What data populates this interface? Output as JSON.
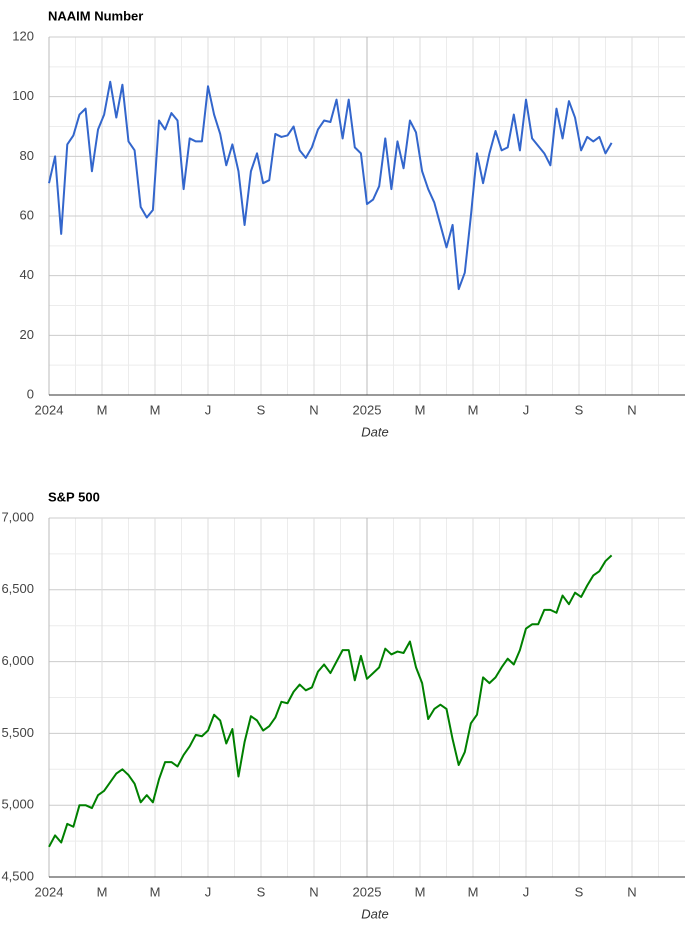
{
  "chart_data": [
    {
      "type": "line",
      "title": "NAAIM Number",
      "x_label": "Date",
      "x": [
        0,
        0.23,
        0.46,
        0.69,
        0.92,
        1.15,
        1.38,
        1.62,
        1.85,
        2.08,
        2.31,
        2.54,
        2.77,
        3,
        3.23,
        3.46,
        3.69,
        3.92,
        4.15,
        4.38,
        4.62,
        4.85,
        5.08,
        5.31,
        5.54,
        5.77,
        6,
        6.23,
        6.46,
        6.69,
        6.92,
        7.15,
        7.38,
        7.62,
        7.85,
        8.08,
        8.31,
        8.54,
        8.77,
        9,
        9.23,
        9.46,
        9.69,
        9.92,
        10.15,
        10.38,
        10.62,
        10.85,
        11.08,
        11.31,
        11.54,
        11.77,
        12,
        12.23,
        12.46,
        12.69,
        12.92,
        13.15,
        13.38,
        13.62,
        13.85,
        14.08,
        14.31,
        14.54,
        14.77,
        15,
        15.23,
        15.46,
        15.69,
        15.92,
        16.15,
        16.38,
        16.62,
        16.85,
        17.08,
        17.31,
        17.54,
        17.77,
        18,
        18.23,
        18.46,
        18.69,
        18.92,
        19.15,
        19.38,
        19.62,
        19.85,
        20.08,
        20.31,
        20.54,
        20.77,
        21,
        21.23
      ],
      "series": [
        {
          "name": "NAAIM Number",
          "color": "#3366cc",
          "values": [
            71,
            80,
            54,
            84,
            87,
            94,
            96,
            75,
            89,
            94,
            105,
            93,
            104,
            85,
            82,
            63,
            59.5,
            62,
            92,
            89,
            94.5,
            92,
            69,
            86,
            85,
            85,
            103.5,
            94,
            87.5,
            77,
            84,
            75,
            57,
            75,
            81,
            71,
            72,
            87.5,
            86.5,
            87,
            90,
            82,
            79.5,
            83,
            89,
            92,
            91.5,
            99,
            86,
            99,
            83,
            81,
            64,
            65.5,
            70,
            86,
            69,
            85,
            76,
            92,
            88,
            75,
            69,
            64.5,
            57,
            49.5,
            57,
            35.5,
            41,
            60,
            81,
            71,
            81,
            88.5,
            82,
            83,
            94,
            82,
            99,
            86,
            83.5,
            81,
            77,
            96,
            86,
            98.5,
            93,
            82,
            86.5,
            85,
            86.5,
            81,
            84.5
          ]
        }
      ],
      "xlim": [
        0,
        24
      ],
      "xticks": [
        {
          "value": 0,
          "label": "2024"
        },
        {
          "value": 2,
          "label": "M"
        },
        {
          "value": 4,
          "label": "M"
        },
        {
          "value": 6,
          "label": "J"
        },
        {
          "value": 8,
          "label": "S"
        },
        {
          "value": 10,
          "label": "N"
        },
        {
          "value": 12,
          "label": "2025"
        },
        {
          "value": 14,
          "label": "M"
        },
        {
          "value": 16,
          "label": "M"
        },
        {
          "value": 18,
          "label": "J"
        },
        {
          "value": 20,
          "label": "S"
        },
        {
          "value": 22,
          "label": "N"
        }
      ],
      "ylim": [
        0,
        120
      ],
      "yticks": [
        0,
        20,
        40,
        60,
        80,
        100,
        120
      ],
      "grid": true
    },
    {
      "type": "line",
      "title": "S&P 500",
      "x_label": "Date",
      "x": [
        0,
        0.23,
        0.46,
        0.69,
        0.92,
        1.15,
        1.38,
        1.62,
        1.85,
        2.08,
        2.31,
        2.54,
        2.77,
        3,
        3.23,
        3.46,
        3.69,
        3.92,
        4.15,
        4.38,
        4.62,
        4.85,
        5.08,
        5.31,
        5.54,
        5.77,
        6,
        6.23,
        6.46,
        6.69,
        6.92,
        7.15,
        7.38,
        7.62,
        7.85,
        8.08,
        8.31,
        8.54,
        8.77,
        9,
        9.23,
        9.46,
        9.69,
        9.92,
        10.15,
        10.38,
        10.62,
        10.85,
        11.08,
        11.31,
        11.54,
        11.77,
        12,
        12.23,
        12.46,
        12.69,
        12.92,
        13.15,
        13.38,
        13.62,
        13.85,
        14.08,
        14.31,
        14.54,
        14.77,
        15,
        15.23,
        15.46,
        15.69,
        15.92,
        16.15,
        16.38,
        16.62,
        16.85,
        17.08,
        17.31,
        17.54,
        17.77,
        18,
        18.23,
        18.46,
        18.69,
        18.92,
        19.15,
        19.38,
        19.62,
        19.85,
        20.08,
        20.31,
        20.54,
        20.77,
        21,
        21.23
      ],
      "series": [
        {
          "name": "S&P 500",
          "color": "#008000",
          "values": [
            4710,
            4790,
            4740,
            4870,
            4850,
            5000,
            5000,
            4980,
            5070,
            5100,
            5160,
            5220,
            5250,
            5210,
            5150,
            5020,
            5070,
            5020,
            5180,
            5300,
            5300,
            5270,
            5350,
            5410,
            5490,
            5480,
            5520,
            5630,
            5590,
            5430,
            5530,
            5200,
            5440,
            5620,
            5590,
            5520,
            5550,
            5610,
            5720,
            5710,
            5790,
            5840,
            5800,
            5820,
            5930,
            5980,
            5920,
            6000,
            6080,
            6080,
            5870,
            6040,
            5880,
            5920,
            5960,
            6090,
            6050,
            6070,
            6060,
            6140,
            5960,
            5850,
            5600,
            5670,
            5700,
            5670,
            5460,
            5280,
            5370,
            5570,
            5630,
            5890,
            5850,
            5890,
            5960,
            6020,
            5980,
            6080,
            6230,
            6260,
            6260,
            6360,
            6360,
            6340,
            6460,
            6400,
            6480,
            6450,
            6530,
            6600,
            6630,
            6700,
            6740
          ]
        }
      ],
      "xlim": [
        0,
        24
      ],
      "xticks": [
        {
          "value": 0,
          "label": "2024"
        },
        {
          "value": 2,
          "label": "M"
        },
        {
          "value": 4,
          "label": "M"
        },
        {
          "value": 6,
          "label": "J"
        },
        {
          "value": 8,
          "label": "S"
        },
        {
          "value": 10,
          "label": "N"
        },
        {
          "value": 12,
          "label": "2025"
        },
        {
          "value": 14,
          "label": "M"
        },
        {
          "value": 16,
          "label": "M"
        },
        {
          "value": 18,
          "label": "J"
        },
        {
          "value": 20,
          "label": "S"
        },
        {
          "value": 22,
          "label": "N"
        }
      ],
      "ylim": [
        4500,
        7000
      ],
      "yticks": [
        {
          "value": 4500,
          "label": "4,500"
        },
        {
          "value": 5000,
          "label": "5,000"
        },
        {
          "value": 5500,
          "label": "5,500"
        },
        {
          "value": 6000,
          "label": "6,000"
        },
        {
          "value": 6500,
          "label": "6,500"
        },
        {
          "value": 7000,
          "label": "7,000"
        }
      ],
      "grid": true
    }
  ]
}
